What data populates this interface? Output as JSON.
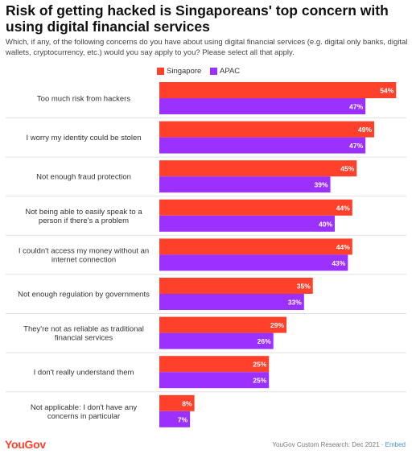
{
  "header": {
    "title": "Risk of getting hacked is Singaporeans' top concern with using digital financial services",
    "subtitle": "Which, if any, of the following concerns do you have about using digital financial services (e.g. digital only banks, digital wallets, cryptocurrency, etc.) would you say apply to you? Please select all that apply."
  },
  "colors": {
    "singapore": "#ff412c",
    "apac": "#9b30ff"
  },
  "chart_data": {
    "type": "bar",
    "orientation": "horizontal",
    "categories": [
      "Too much risk from hackers",
      "I worry my identity could be stolen",
      "Not enough fraud protection",
      "Not being able to easily speak to a person if there's a problem",
      "I couldn't access my money without an internet connection",
      "Not enough regulation by governments",
      "They're not as reliable as traditional financial services",
      "I don't really understand them",
      "Not applicable: I don't have any concerns in particular"
    ],
    "series": [
      {
        "name": "Singapore",
        "values": [
          54,
          49,
          45,
          44,
          44,
          35,
          29,
          25,
          8
        ],
        "labels": [
          "54%",
          "49%",
          "45%",
          "44%",
          "44%",
          "35%",
          "29%",
          "25%",
          "8%"
        ]
      },
      {
        "name": "APAC",
        "values": [
          47,
          47,
          39,
          40,
          43,
          33,
          26,
          25,
          7
        ],
        "labels": [
          "47%",
          "47%",
          "39%",
          "40%",
          "43%",
          "33%",
          "26%",
          "25%",
          "7%"
        ]
      }
    ],
    "legend": "top-left",
    "grid": false,
    "xlim": [
      0,
      55
    ]
  },
  "footer": {
    "logo": "YouGov",
    "source": "YouGov Custom Research: Dec 2021 · ",
    "embed": "Embed"
  }
}
